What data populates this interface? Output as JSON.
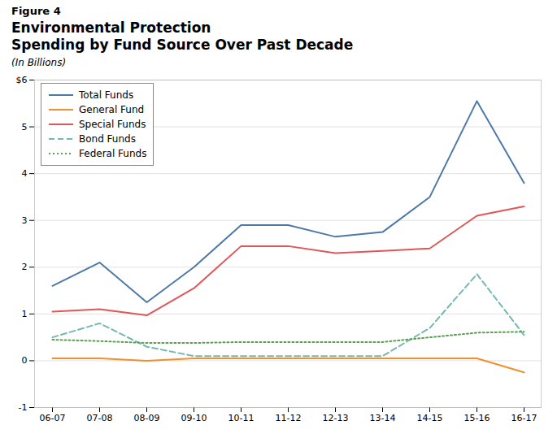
{
  "chart_data": {
    "type": "line",
    "title": "Figure 4",
    "subtitle": [
      "Environmental Protection",
      "Spending by Fund Source Over Past Decade"
    ],
    "ylabel": "(In Billions)",
    "categories": [
      "06-07",
      "07-08",
      "08-09",
      "09-10",
      "10-11",
      "11-12",
      "12-13",
      "13-14",
      "14-15",
      "15-16",
      "16-17"
    ],
    "series": [
      {
        "name": "Total Funds",
        "values": [
          1.6,
          2.1,
          1.25,
          2.0,
          2.9,
          2.9,
          2.65,
          2.75,
          3.5,
          5.55,
          3.8
        ],
        "line_style": "solid"
      },
      {
        "name": "General Fund",
        "values": [
          0.05,
          0.05,
          0.0,
          0.05,
          0.05,
          0.05,
          0.05,
          0.05,
          0.05,
          0.05,
          -0.25
        ],
        "line_style": "solid"
      },
      {
        "name": "Special Funds",
        "values": [
          1.05,
          1.1,
          0.97,
          1.55,
          2.45,
          2.45,
          2.3,
          2.35,
          2.4,
          3.1,
          3.3
        ],
        "line_style": "solid"
      },
      {
        "name": "Bond Funds",
        "values": [
          0.5,
          0.8,
          0.3,
          0.1,
          0.1,
          0.1,
          0.1,
          0.1,
          0.7,
          1.85,
          0.55
        ],
        "line_style": "dashed"
      },
      {
        "name": "Federal Funds",
        "values": [
          0.45,
          0.42,
          0.38,
          0.38,
          0.4,
          0.4,
          0.4,
          0.4,
          0.5,
          0.6,
          0.62
        ],
        "line_style": "dotted"
      }
    ],
    "ylim": [
      -1,
      6
    ],
    "yticks": [
      -1,
      0,
      1,
      2,
      3,
      4,
      5,
      {
        "value": 6,
        "label": "$6"
      }
    ],
    "grid": true,
    "legend": "upper left"
  }
}
